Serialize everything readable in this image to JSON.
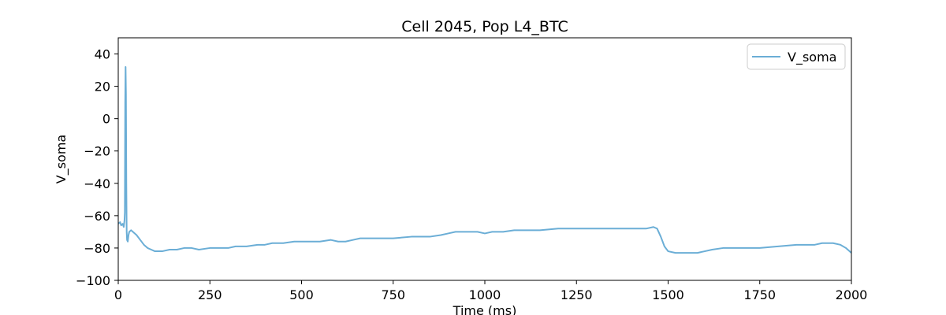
{
  "chart_data": {
    "type": "line",
    "title": "Cell 2045, Pop L4_BTC",
    "xlabel": "Time (ms)",
    "ylabel": "V_soma",
    "xlim": [
      0,
      2000
    ],
    "ylim": [
      -100,
      50
    ],
    "xticks": [
      0,
      250,
      500,
      750,
      1000,
      1250,
      1500,
      1750,
      2000
    ],
    "yticks": [
      -100,
      -80,
      -60,
      -40,
      -20,
      0,
      20,
      40
    ],
    "grid": false,
    "legend": {
      "position": "top-right"
    },
    "series": [
      {
        "name": "V_soma",
        "color": "#6baed6",
        "points": [
          [
            0,
            -65
          ],
          [
            5,
            -64
          ],
          [
            8,
            -66
          ],
          [
            12,
            -65
          ],
          [
            15,
            -67
          ],
          [
            17,
            -63
          ],
          [
            18,
            -58
          ],
          [
            19,
            10
          ],
          [
            20,
            32
          ],
          [
            21,
            15
          ],
          [
            22,
            -40
          ],
          [
            23,
            -70
          ],
          [
            24,
            -75
          ],
          [
            26,
            -76
          ],
          [
            28,
            -72
          ],
          [
            30,
            -70
          ],
          [
            35,
            -69
          ],
          [
            40,
            -70
          ],
          [
            50,
            -72
          ],
          [
            60,
            -75
          ],
          [
            70,
            -78
          ],
          [
            80,
            -80
          ],
          [
            90,
            -81
          ],
          [
            100,
            -82
          ],
          [
            110,
            -82
          ],
          [
            120,
            -82
          ],
          [
            140,
            -81
          ],
          [
            160,
            -81
          ],
          [
            180,
            -80
          ],
          [
            200,
            -80
          ],
          [
            220,
            -81
          ],
          [
            250,
            -80
          ],
          [
            280,
            -80
          ],
          [
            300,
            -80
          ],
          [
            320,
            -79
          ],
          [
            350,
            -79
          ],
          [
            380,
            -78
          ],
          [
            400,
            -78
          ],
          [
            420,
            -77
          ],
          [
            450,
            -77
          ],
          [
            480,
            -76
          ],
          [
            500,
            -76
          ],
          [
            520,
            -76
          ],
          [
            550,
            -76
          ],
          [
            580,
            -75
          ],
          [
            600,
            -76
          ],
          [
            620,
            -76
          ],
          [
            640,
            -75
          ],
          [
            660,
            -74
          ],
          [
            700,
            -74
          ],
          [
            750,
            -74
          ],
          [
            800,
            -73
          ],
          [
            850,
            -73
          ],
          [
            880,
            -72
          ],
          [
            900,
            -71
          ],
          [
            920,
            -70
          ],
          [
            950,
            -70
          ],
          [
            980,
            -70
          ],
          [
            1000,
            -71
          ],
          [
            1020,
            -70
          ],
          [
            1050,
            -70
          ],
          [
            1080,
            -69
          ],
          [
            1100,
            -69
          ],
          [
            1150,
            -69
          ],
          [
            1200,
            -68
          ],
          [
            1250,
            -68
          ],
          [
            1300,
            -68
          ],
          [
            1350,
            -68
          ],
          [
            1400,
            -68
          ],
          [
            1440,
            -68
          ],
          [
            1460,
            -67
          ],
          [
            1470,
            -68
          ],
          [
            1480,
            -73
          ],
          [
            1490,
            -79
          ],
          [
            1500,
            -82
          ],
          [
            1520,
            -83
          ],
          [
            1540,
            -83
          ],
          [
            1560,
            -83
          ],
          [
            1580,
            -83
          ],
          [
            1600,
            -82
          ],
          [
            1620,
            -81
          ],
          [
            1650,
            -80
          ],
          [
            1700,
            -80
          ],
          [
            1750,
            -80
          ],
          [
            1800,
            -79
          ],
          [
            1850,
            -78
          ],
          [
            1900,
            -78
          ],
          [
            1920,
            -77
          ],
          [
            1950,
            -77
          ],
          [
            1970,
            -78
          ],
          [
            1985,
            -80
          ],
          [
            2000,
            -83
          ]
        ]
      }
    ]
  }
}
